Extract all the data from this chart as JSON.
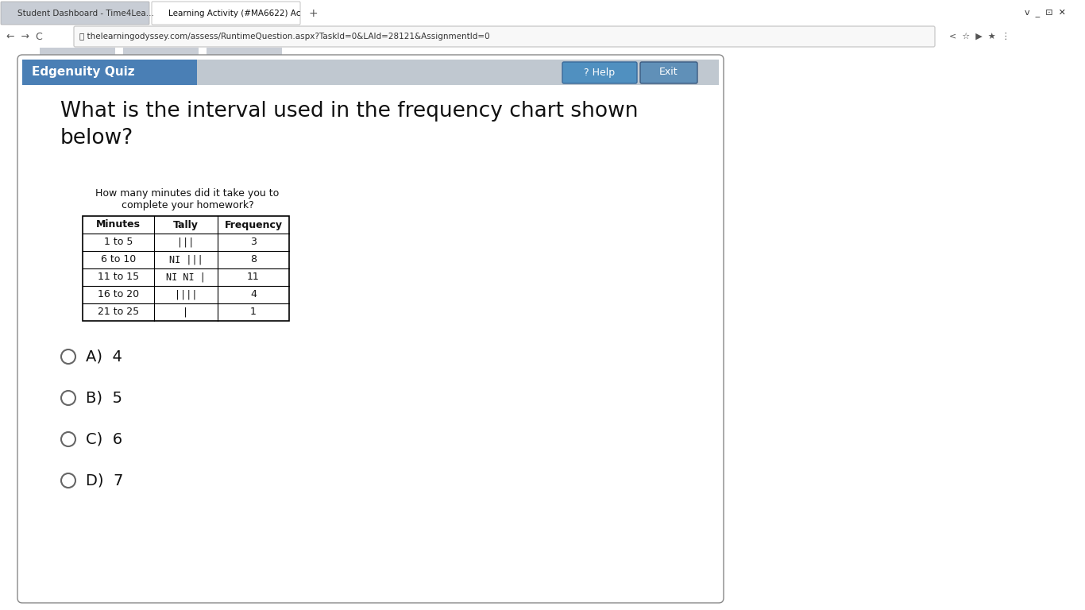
{
  "tab1_text": "Student Dashboard - Time4Lea...",
  "tab2_text": "Learning Activity (#MA6622) Ac",
  "url_text": "thelearningodyssey.com/assess/RuntimeQuestion.aspx?TaskId=0&LAId=28121&AssignmentId=0",
  "header_text": "Edgenuity Quiz",
  "help_text": "? Help",
  "exit_text": "Exit",
  "browser_bg": "#dee1e6",
  "tab_active_bg": "#ffffff",
  "tab_inactive_bg": "#c8cdd5",
  "urlbar_bg": "#f1f3f4",
  "outer_bg": "#3a7ab5",
  "content_bg": "#ffffff",
  "header_bar_left_bg": "#4a7fb5",
  "header_bar_right_bg": "#c0c8d0",
  "help_btn_bg": "#5090c0",
  "exit_btn_bg": "#6090b8",
  "question_text_line1": "What is the interval used in the frequency chart shown",
  "question_text_line2": "below?",
  "question_fontsize": 22,
  "table_title_line1": "How many minutes did it take you to",
  "table_title_line2": "complete your homework?",
  "table_headers": [
    "Minutes",
    "Tally",
    "Frequency"
  ],
  "row_minutes": [
    "1 to 5",
    "6 to 10",
    "11 to 15",
    "16 to 20",
    "21 to 25"
  ],
  "row_tally": [
    "|||",
    "NI |||",
    "NI NI |",
    "||||",
    "|"
  ],
  "row_frequency": [
    "3",
    "8",
    "11",
    "4",
    "1"
  ],
  "answer_labels": [
    "A)",
    "B)",
    "C)",
    "D)"
  ],
  "answer_values": [
    "4",
    "5",
    "6",
    "7"
  ],
  "circle_ec": "#666666",
  "text_color": "#111111"
}
